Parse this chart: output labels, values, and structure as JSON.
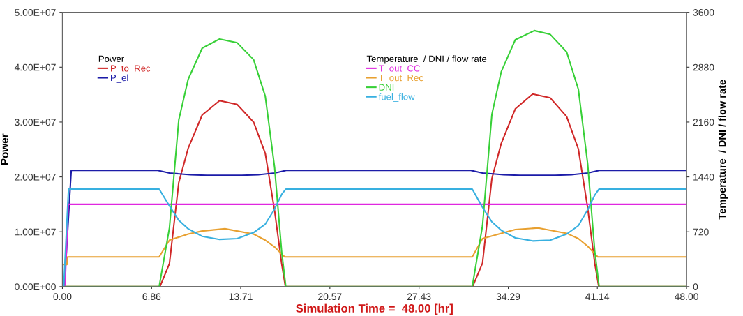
{
  "chart_data": {
    "type": "line",
    "xlabel": "Simulation Time =  48.00 [hr]",
    "ylabel": "Power",
    "y2label": "Temperature  / DNI / flow rate",
    "xlim": [
      0,
      48
    ],
    "xticks": [
      {
        "value": 0,
        "label": "0.00"
      },
      6.86,
      13.71,
      20.57,
      27.43,
      34.29,
      41.14,
      {
        "value": 48,
        "label": "48.00"
      }
    ],
    "ylim": [
      0,
      50000000
    ],
    "yticks": [
      {
        "value": 0,
        "label": "0.00E+00"
      },
      {
        "value": 10000000,
        "label": "1.00E+07"
      },
      {
        "value": 20000000,
        "label": "2.00E+07"
      },
      {
        "value": 30000000,
        "label": "3.00E+07"
      },
      {
        "value": 40000000,
        "label": "4.00E+07"
      },
      {
        "value": 50000000,
        "label": "5.00E+07"
      }
    ],
    "y2lim": [
      0,
      3600
    ],
    "y2ticks": [
      0,
      720,
      1440,
      2160,
      2880,
      3600
    ],
    "grid": false,
    "legend": "top left",
    "series": [
      {
        "name": "P  to  Rec",
        "color": "#d02828",
        "x": [
          0,
          7.5,
          8.23,
          8.95,
          9.67,
          10.75,
          12.09,
          13.44,
          14.7,
          15.6,
          16.32,
          16.86,
          17.15,
          31.55,
          32.31,
          33.03,
          33.75,
          34.83,
          36.17,
          37.52,
          38.78,
          39.68,
          40.4,
          40.94,
          41.25,
          48
        ],
        "values": [
          0,
          0,
          4200000,
          19000000,
          25200000,
          31300000,
          33900000,
          33200000,
          30000000,
          24300000,
          13800000,
          4200000,
          0,
          0,
          4300000,
          19700000,
          26100000,
          32400000,
          35100000,
          34400000,
          31000000,
          25100000,
          14300000,
          4300000,
          0,
          0
        ]
      },
      {
        "name": "P_el",
        "color": "#1c1ca8",
        "x": [
          0,
          0.15,
          0.68,
          7.33,
          8.23,
          9.85,
          11.1,
          13.8,
          15.06,
          16.32,
          17.21,
          31.41,
          32.31,
          33.93,
          35.18,
          37.88,
          39.14,
          40.4,
          41.29,
          48
        ],
        "values": [
          0,
          0,
          21200000,
          21200000,
          20700000,
          20400000,
          20300000,
          20300000,
          20400000,
          20700000,
          21200000,
          21200000,
          20700000,
          20400000,
          20300000,
          20300000,
          20400000,
          20700000,
          21200000,
          21200000
        ]
      },
      {
        "name": "T  out  CC",
        "color": "#e028e0",
        "axis": "y2",
        "x": [
          0,
          0.2,
          0.45,
          48
        ],
        "values": [
          0,
          0,
          1080,
          1080
        ]
      },
      {
        "name": "T  out  Rec",
        "color": "#e8a030",
        "axis": "y2",
        "x": [
          0,
          0.35,
          0.4,
          7.44,
          8.23,
          9.67,
          10.75,
          12.5,
          14.7,
          15.6,
          16.32,
          16.86,
          17.1,
          31.52,
          32.31,
          33.75,
          34.83,
          36.6,
          38.78,
          39.68,
          40.4,
          40.94,
          41.18,
          48
        ],
        "values": [
          290,
          290,
          390,
          390,
          610,
          690,
          730,
          760,
          690,
          610,
          520,
          430,
          390,
          390,
          630,
          700,
          750,
          770,
          700,
          630,
          530,
          430,
          390,
          390
        ]
      },
      {
        "name": "DNI",
        "color": "#38d038",
        "axis": "y2",
        "x": [
          0,
          7.44,
          8.23,
          8.95,
          9.67,
          10.75,
          12.09,
          13.44,
          14.7,
          15.6,
          16.32,
          16.86,
          17.18,
          31.52,
          32.31,
          33.03,
          33.75,
          34.83,
          36.3,
          37.52,
          38.78,
          39.68,
          40.4,
          40.94,
          41.28,
          48
        ],
        "values": [
          0,
          0,
          770,
          2190,
          2720,
          3130,
          3250,
          3200,
          2980,
          2500,
          1560,
          460,
          0,
          0,
          800,
          2260,
          2820,
          3240,
          3360,
          3310,
          3080,
          2590,
          1610,
          470,
          0,
          0
        ]
      },
      {
        "name": "fuel_flow",
        "color": "#38b0e0",
        "axis": "y2",
        "x": [
          0,
          0.1,
          0.47,
          7.44,
          8.23,
          8.95,
          9.67,
          10.75,
          12.09,
          13.44,
          14.7,
          15.6,
          16.32,
          16.86,
          17.18,
          31.52,
          32.31,
          33.03,
          33.75,
          34.83,
          36.17,
          37.52,
          38.78,
          39.68,
          40.4,
          40.94,
          41.26,
          48
        ],
        "values": [
          0,
          0,
          1280,
          1280,
          1060,
          870,
          760,
          660,
          620,
          630,
          710,
          820,
          1020,
          1210,
          1280,
          1280,
          1040,
          850,
          740,
          640,
          600,
          610,
          690,
          800,
          1010,
          1200,
          1280,
          1280
        ]
      }
    ]
  }
}
